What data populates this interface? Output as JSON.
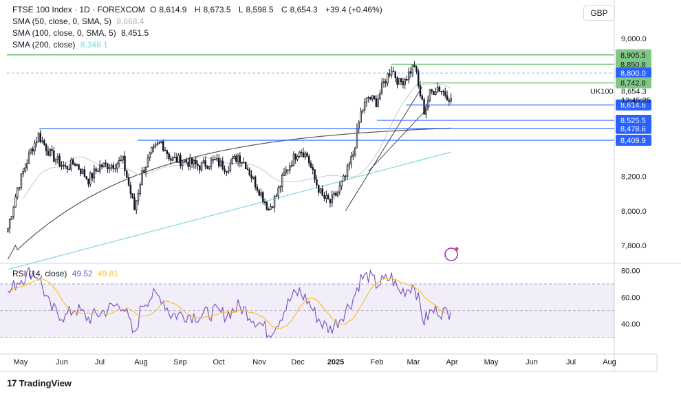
{
  "header": {
    "symbol": "FTSE 100 Index · 1D · FOREXCOM",
    "open_label": "O",
    "open": "8,614.9",
    "high_label": "H",
    "high": "8,673.5",
    "low_label": "L",
    "low": "8,598.5",
    "close_label": "C",
    "close": "8,654.3",
    "change": "+39.4 (+0.46%)"
  },
  "indicators": [
    {
      "label": "SMA (50, close, 0, SMA, 5)",
      "value": "8,668.4",
      "color": "#c8c8c8"
    },
    {
      "label": "SMA (100, close, 0, SMA, 5)",
      "value": "8,451.5",
      "color": "#555555"
    },
    {
      "label": "SMA (200, close)",
      "value": "8,348.1",
      "color": "#7fd6e0"
    }
  ],
  "currency": "GBP",
  "rsi_label": "RSI (14, close)",
  "rsi_value": "49.52",
  "rsi_ma_value": "49.81",
  "symbol_tag": "UK100",
  "last_price": "8,654.3",
  "countdown": "13:45:25",
  "brand": "TradingView",
  "colors": {
    "up": "#089981",
    "down": "#f23645",
    "candle": "#131722",
    "support": "#2962ff",
    "resistance": "#4caf50",
    "rsi": "#7e57c2",
    "rsi_ma": "#fbc02d",
    "sma200": "#7fd6e0",
    "sma100": "#555555",
    "sma50": "#c8c8c8"
  },
  "chart_data": {
    "type": "candlestick",
    "price_axis": {
      "ylim": [
        7700,
        9080
      ],
      "ticks": [
        7800,
        8000,
        8200,
        9000
      ],
      "tick_labels": [
        "7,800.0",
        "8,000.0",
        "8,200.0",
        "9,000.0"
      ]
    },
    "rsi_axis": {
      "ylim": [
        22,
        85
      ],
      "ticks": [
        40,
        60,
        80
      ],
      "tick_labels": [
        "40.00",
        "60.00",
        "80.00"
      ],
      "bands": [
        30,
        50,
        70
      ]
    },
    "months": [
      "May",
      "Jun",
      "Jul",
      "Aug",
      "Sep",
      "Oct",
      "Nov",
      "Dec",
      "2025",
      "Feb",
      "Mar",
      "Apr",
      "May",
      "Jun",
      "Jul",
      "Aug"
    ],
    "levels": [
      {
        "price": 8905.5,
        "label": "8,905.5",
        "color": "#4caf50"
      },
      {
        "price": 8850.8,
        "label": "8,850.8",
        "color": "#4caf50"
      },
      {
        "price": 8800.0,
        "label": "8,800.0",
        "color": "#2962ff",
        "dashed": true
      },
      {
        "price": 8742.8,
        "label": "8,742.8",
        "color": "#4caf50"
      },
      {
        "price": 8614.6,
        "label": "8,614.6",
        "color": "#2962ff"
      },
      {
        "price": 8525.5,
        "label": "8,525.5",
        "color": "#2962ff"
      },
      {
        "price": 8478.6,
        "label": "8,478.6",
        "color": "#2962ff"
      },
      {
        "price": 8409.9,
        "label": "8,409.9",
        "color": "#2962ff"
      }
    ],
    "close_anchors": [
      [
        0,
        7900
      ],
      [
        5,
        8130
      ],
      [
        12,
        8350
      ],
      [
        16,
        8440
      ],
      [
        22,
        8330
      ],
      [
        30,
        8250
      ],
      [
        35,
        8280
      ],
      [
        42,
        8180
      ],
      [
        48,
        8260
      ],
      [
        55,
        8270
      ],
      [
        60,
        8290
      ],
      [
        66,
        8010
      ],
      [
        70,
        8220
      ],
      [
        75,
        8340
      ],
      [
        80,
        8400
      ],
      [
        85,
        8300
      ],
      [
        92,
        8290
      ],
      [
        100,
        8260
      ],
      [
        108,
        8290
      ],
      [
        114,
        8250
      ],
      [
        120,
        8320
      ],
      [
        124,
        8270
      ],
      [
        128,
        8180
      ],
      [
        132,
        8100
      ],
      [
        136,
        8010
      ],
      [
        140,
        8090
      ],
      [
        144,
        8210
      ],
      [
        148,
        8290
      ],
      [
        152,
        8360
      ],
      [
        156,
        8320
      ],
      [
        160,
        8180
      ],
      [
        164,
        8080
      ],
      [
        168,
        8050
      ],
      [
        172,
        8110
      ],
      [
        176,
        8200
      ],
      [
        180,
        8330
      ],
      [
        184,
        8570
      ],
      [
        188,
        8660
      ],
      [
        192,
        8630
      ],
      [
        196,
        8740
      ],
      [
        200,
        8830
      ],
      [
        204,
        8740
      ],
      [
        208,
        8780
      ],
      [
        212,
        8850
      ],
      [
        214,
        8720
      ],
      [
        217,
        8580
      ],
      [
        220,
        8680
      ],
      [
        224,
        8720
      ],
      [
        228,
        8680
      ],
      [
        231,
        8654
      ]
    ],
    "rsi_anchors": [
      [
        0,
        62
      ],
      [
        5,
        72
      ],
      [
        12,
        79
      ],
      [
        16,
        76
      ],
      [
        22,
        52
      ],
      [
        30,
        45
      ],
      [
        35,
        52
      ],
      [
        42,
        44
      ],
      [
        48,
        48
      ],
      [
        55,
        53
      ],
      [
        60,
        55
      ],
      [
        66,
        30
      ],
      [
        70,
        55
      ],
      [
        75,
        61
      ],
      [
        80,
        60
      ],
      [
        85,
        47
      ],
      [
        92,
        47
      ],
      [
        100,
        46
      ],
      [
        108,
        49
      ],
      [
        114,
        47
      ],
      [
        120,
        53
      ],
      [
        124,
        50
      ],
      [
        128,
        44
      ],
      [
        132,
        40
      ],
      [
        136,
        33
      ],
      [
        140,
        40
      ],
      [
        144,
        50
      ],
      [
        148,
        60
      ],
      [
        152,
        64
      ],
      [
        156,
        58
      ],
      [
        160,
        48
      ],
      [
        164,
        40
      ],
      [
        168,
        36
      ],
      [
        172,
        42
      ],
      [
        176,
        50
      ],
      [
        180,
        59
      ],
      [
        184,
        74
      ],
      [
        188,
        76
      ],
      [
        192,
        70
      ],
      [
        196,
        72
      ],
      [
        200,
        75
      ],
      [
        204,
        64
      ],
      [
        208,
        66
      ],
      [
        212,
        70
      ],
      [
        214,
        58
      ],
      [
        217,
        42
      ],
      [
        220,
        48
      ],
      [
        224,
        51
      ],
      [
        228,
        48
      ],
      [
        231,
        49.52
      ]
    ]
  }
}
